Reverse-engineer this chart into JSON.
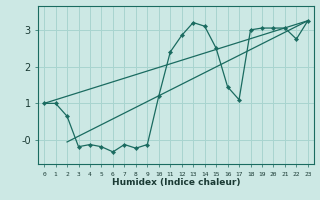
{
  "xlabel": "Humidex (Indice chaleur)",
  "bg_color": "#cce8e4",
  "grid_color": "#a8d4cf",
  "line_color": "#1a6b60",
  "xlim": [
    -0.5,
    23.5
  ],
  "ylim": [
    -0.65,
    3.65
  ],
  "xticks": [
    0,
    1,
    2,
    3,
    4,
    5,
    6,
    7,
    8,
    9,
    10,
    11,
    12,
    13,
    14,
    15,
    16,
    17,
    18,
    19,
    20,
    21,
    22,
    23
  ],
  "yticks": [
    0,
    1,
    2,
    3
  ],
  "ytick_labels": [
    "-0",
    "1",
    "2",
    "3"
  ],
  "data_x": [
    0,
    1,
    2,
    3,
    4,
    5,
    6,
    7,
    8,
    9,
    10,
    11,
    12,
    13,
    14,
    15,
    16,
    17,
    18,
    19,
    20,
    21,
    22,
    23
  ],
  "data_y": [
    1.0,
    1.0,
    0.65,
    -0.18,
    -0.12,
    -0.18,
    -0.32,
    -0.12,
    -0.22,
    -0.12,
    1.2,
    2.4,
    2.85,
    3.2,
    3.1,
    2.5,
    1.45,
    1.1,
    3.0,
    3.05,
    3.05,
    3.05,
    2.75,
    3.25
  ],
  "trend1_x": [
    0,
    23
  ],
  "trend1_y": [
    1.0,
    3.25
  ],
  "trend2_x": [
    2,
    23
  ],
  "trend2_y": [
    -0.05,
    3.25
  ]
}
